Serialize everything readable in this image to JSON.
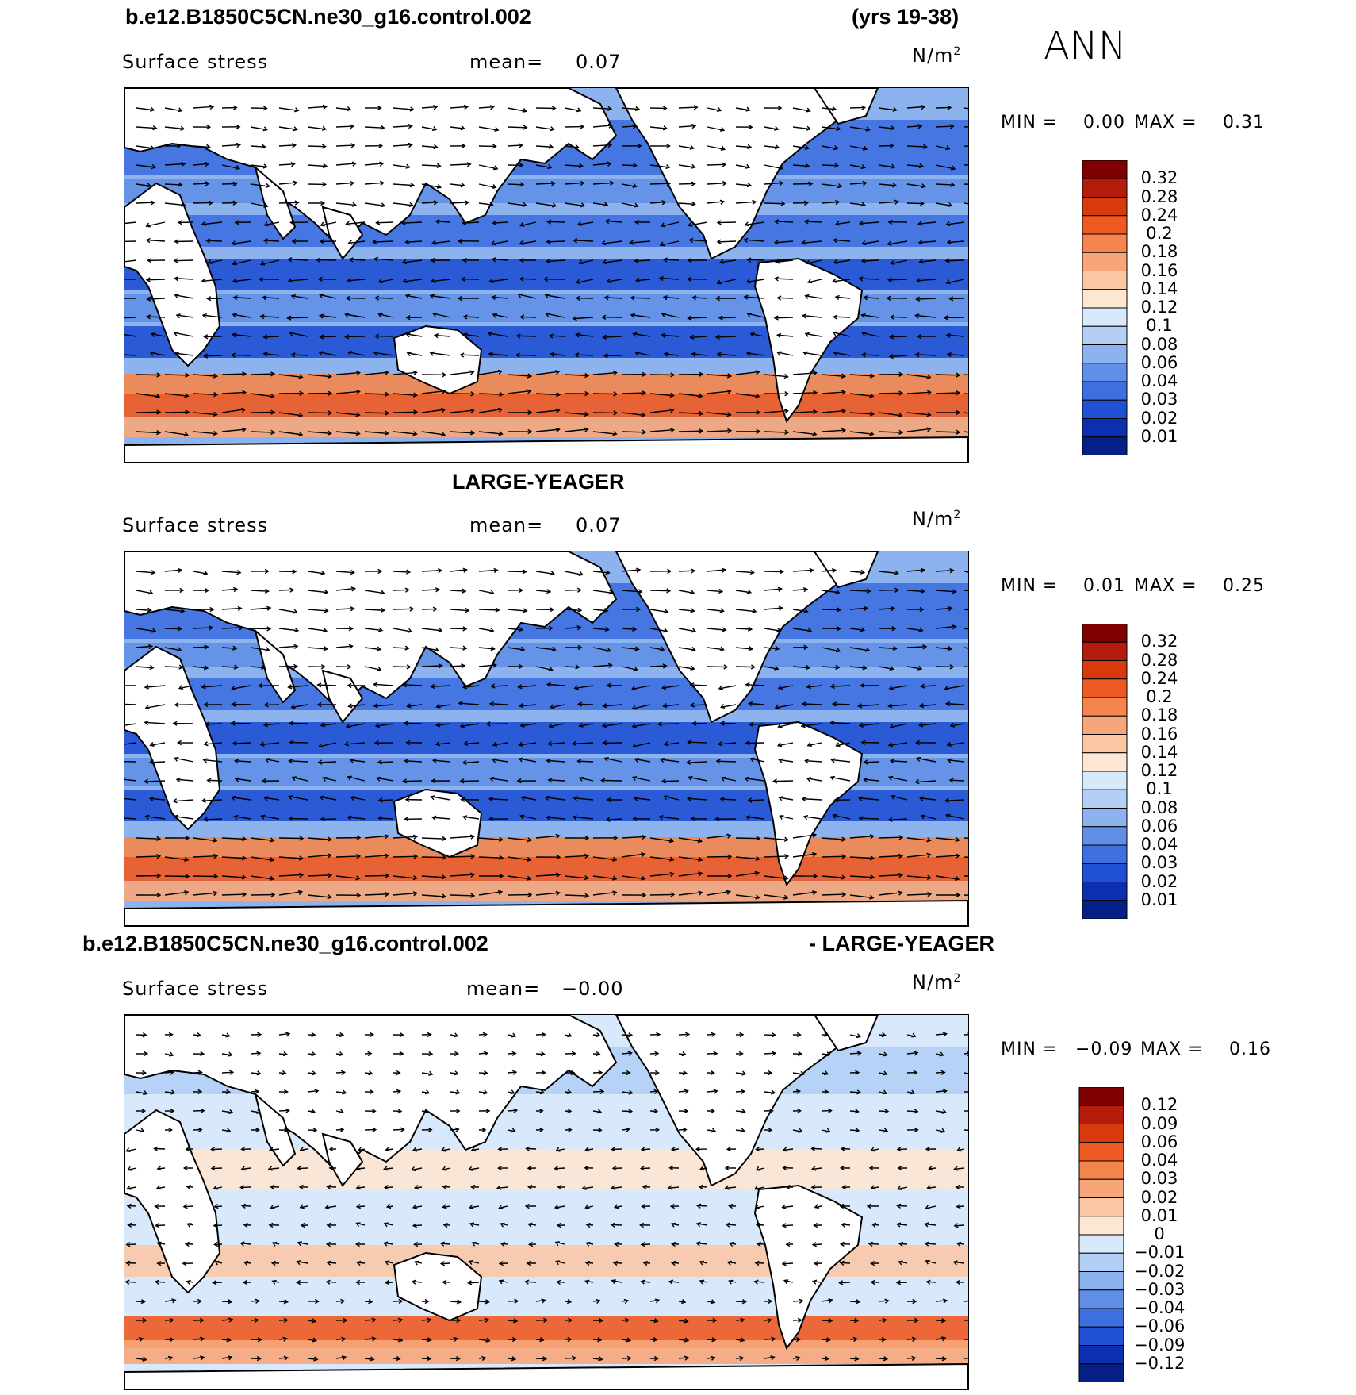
{
  "header": {
    "case_title": "b.e12.B1850C5CN.ne30_g16.control.002",
    "years": "(yrs 19-38)",
    "season": "ANN"
  },
  "panels": [
    {
      "id": "model",
      "title": "",
      "variable": "Surface stress",
      "mean_label": "mean=",
      "mean_value": "0.07",
      "units_prefix": "N/m",
      "units_exp": "2",
      "min_label": "MIN =",
      "min_value": "0.00",
      "max_label": "MAX =",
      "max_value": "0.31",
      "colorbar": {
        "labels": [
          "0.32",
          "0.28",
          "0.24",
          "0.2",
          "0.18",
          "0.16",
          "0.14",
          "0.12",
          "0.1",
          "0.08",
          "0.06",
          "0.04",
          "0.03",
          "0.02",
          "0.01"
        ],
        "colors": [
          "#7f0000",
          "#b31b0a",
          "#d93a0d",
          "#ef5a22",
          "#f4864d",
          "#f7a679",
          "#fbc8a6",
          "#fde6d2",
          "#d7e9fb",
          "#b3cff5",
          "#8db3ef",
          "#5f8fe6",
          "#3d6fe0",
          "#2050d3",
          "#0c2fb0",
          "#061f87"
        ]
      }
    },
    {
      "id": "obs",
      "title": "LARGE-YEAGER",
      "variable": "Surface stress",
      "mean_label": "mean=",
      "mean_value": "0.07",
      "units_prefix": "N/m",
      "units_exp": "2",
      "min_label": "MIN =",
      "min_value": "0.01",
      "max_label": "MAX =",
      "max_value": "0.25",
      "colorbar": {
        "labels": [
          "0.32",
          "0.28",
          "0.24",
          "0.2",
          "0.18",
          "0.16",
          "0.14",
          "0.12",
          "0.1",
          "0.08",
          "0.06",
          "0.04",
          "0.03",
          "0.02",
          "0.01"
        ],
        "colors": [
          "#7f0000",
          "#b31b0a",
          "#d93a0d",
          "#ef5a22",
          "#f4864d",
          "#f7a679",
          "#fbc8a6",
          "#fde6d2",
          "#d7e9fb",
          "#b3cff5",
          "#8db3ef",
          "#5f8fe6",
          "#3d6fe0",
          "#2050d3",
          "#0c2fb0",
          "#061f87"
        ]
      }
    },
    {
      "id": "diff",
      "title_left": "b.e12.B1850C5CN.ne30_g16.control.002",
      "title_right": "- LARGE-YEAGER",
      "variable": "Surface stress",
      "mean_label": "mean=",
      "mean_value": "−0.00",
      "units_prefix": "N/m",
      "units_exp": "2",
      "min_label": "MIN =",
      "min_value": "−0.09",
      "max_label": "MAX =",
      "max_value": "0.16",
      "colorbar": {
        "labels": [
          "0.12",
          "0.09",
          "0.06",
          "0.04",
          "0.03",
          "0.02",
          "0.01",
          "0",
          "−0.01",
          "−0.02",
          "−0.03",
          "−0.04",
          "−0.06",
          "−0.09",
          "−0.12"
        ],
        "colors": [
          "#7f0000",
          "#b31b0a",
          "#d93a0d",
          "#ef5a22",
          "#f4864d",
          "#f7a679",
          "#fbc8a6",
          "#fde6d2",
          "#d7e9fb",
          "#b3cff5",
          "#8db3ef",
          "#5f8fe6",
          "#3d6fe0",
          "#2050d3",
          "#0c2fb0",
          "#061f87"
        ]
      }
    }
  ]
}
